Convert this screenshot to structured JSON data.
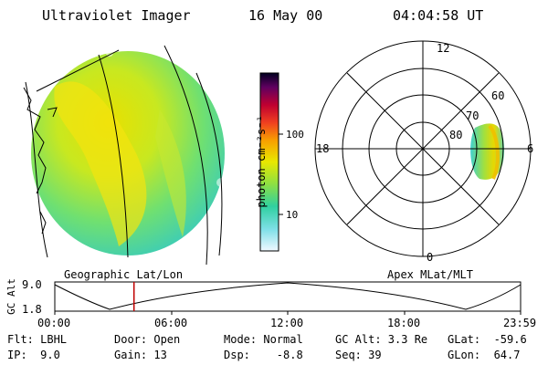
{
  "header": {
    "instrument": "Ultraviolet Imager",
    "date": "16 May 00",
    "time": "04:04:58 UT"
  },
  "panels": {
    "geographic_label": "Geographic Lat/Lon",
    "apex_label": "Apex MLat/MLT"
  },
  "colorbar": {
    "unit_label": "photon cm⁻²s⁻¹",
    "ticks": [
      "100",
      "10"
    ]
  },
  "polar": {
    "mlt_labels": [
      "12",
      "18",
      "6",
      "0"
    ],
    "lat_labels": [
      "60",
      "70",
      "80"
    ]
  },
  "altitude_plot": {
    "axis_label": "GC Alt",
    "y_ticks": [
      "9.0",
      "1.8"
    ],
    "time_ticks": [
      "00:00",
      "06:00",
      "12:00",
      "18:00",
      "23:59"
    ],
    "marker_fraction": 0.17
  },
  "status": {
    "filter": "Flt: LBHL",
    "ip": "IP:  9.0",
    "door": "Door: Open",
    "gain": "Gain: 13",
    "mode": "Mode: Normal",
    "dsp": "Dsp:    -8.8",
    "gc_alt": "GC Alt: 3.3 Re",
    "seq": "Seq: 39",
    "glat": "GLat:  -59.6",
    "glon": "GLon:  64.7"
  },
  "colors": {
    "marker": "#c00000",
    "background": "#ffffff"
  }
}
